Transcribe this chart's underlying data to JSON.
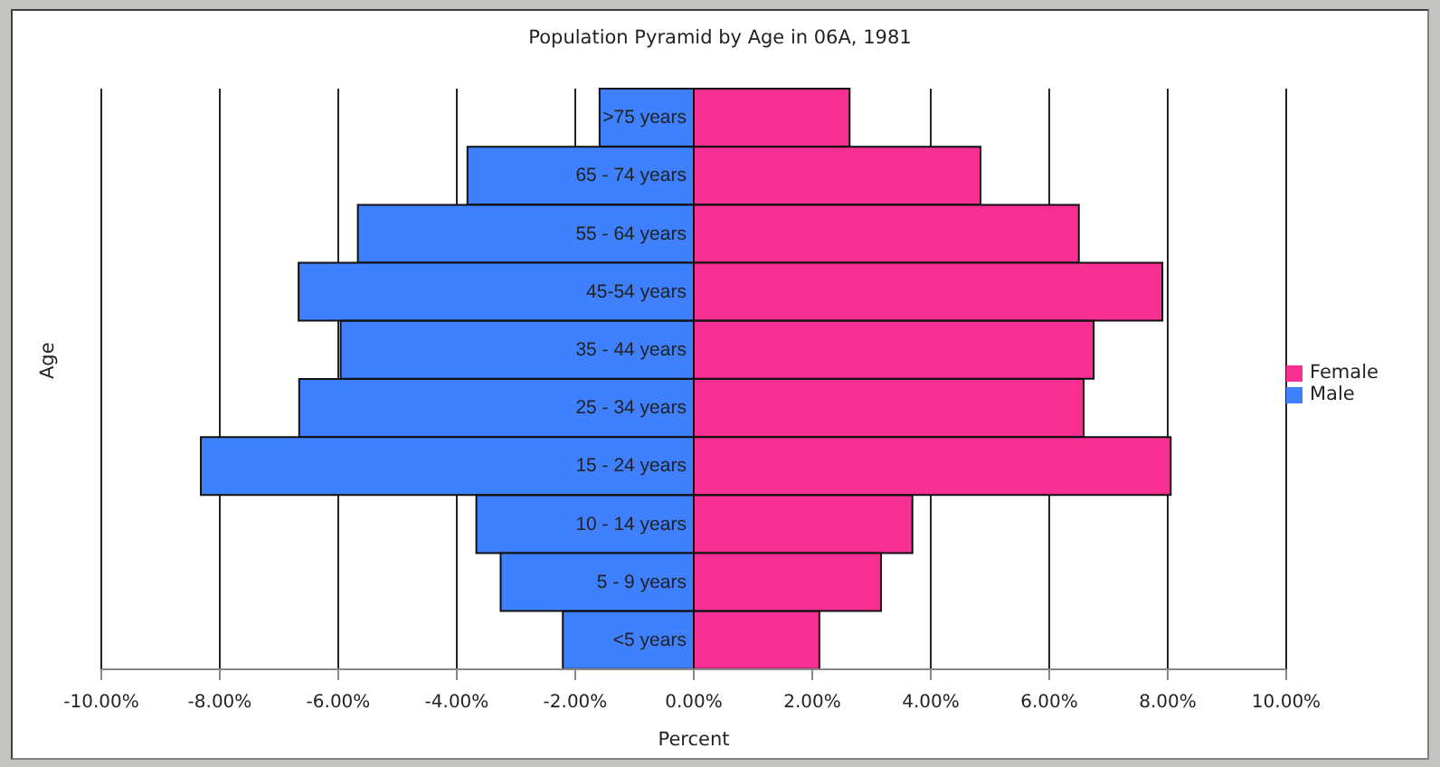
{
  "chart_data": {
    "type": "bar",
    "orientation": "horizontal",
    "stacked": true,
    "title": "Population Pyramid by Age in 06A, 1981",
    "xlabel": "Percent",
    "ylabel": "Age",
    "categories": [
      ">75 years",
      "65 - 74 years",
      "55 - 64 years",
      "45-54 years",
      "35 - 44 years",
      "25 - 34 years",
      "15 - 24 years",
      "10 - 14 years",
      "5 - 9 years",
      "<5 years"
    ],
    "series": [
      {
        "name": "Female",
        "color": "#f72f93",
        "values": [
          2.63,
          4.84,
          6.5,
          7.91,
          6.75,
          6.58,
          8.05,
          3.69,
          3.16,
          2.12
        ]
      },
      {
        "name": "Male",
        "color": "#3f80ff",
        "values": [
          -1.59,
          -3.82,
          -5.67,
          -6.67,
          -5.96,
          -6.66,
          -8.32,
          -3.67,
          -3.26,
          -2.21
        ]
      }
    ],
    "xlim": [
      -10,
      10
    ],
    "xticks": [
      {
        "value": -10,
        "label": "-10.00%"
      },
      {
        "value": -8,
        "label": "-8.00%"
      },
      {
        "value": -6,
        "label": "-6.00%"
      },
      {
        "value": -4,
        "label": "-4.00%"
      },
      {
        "value": -2,
        "label": "-2.00%"
      },
      {
        "value": 0,
        "label": "0.00%"
      },
      {
        "value": 2,
        "label": "2.00%"
      },
      {
        "value": 4,
        "label": "4.00%"
      },
      {
        "value": 6,
        "label": "6.00%"
      },
      {
        "value": 8,
        "label": "8.00%"
      },
      {
        "value": 10,
        "label": "10.00%"
      }
    ],
    "grid": "x",
    "legend": "right"
  }
}
